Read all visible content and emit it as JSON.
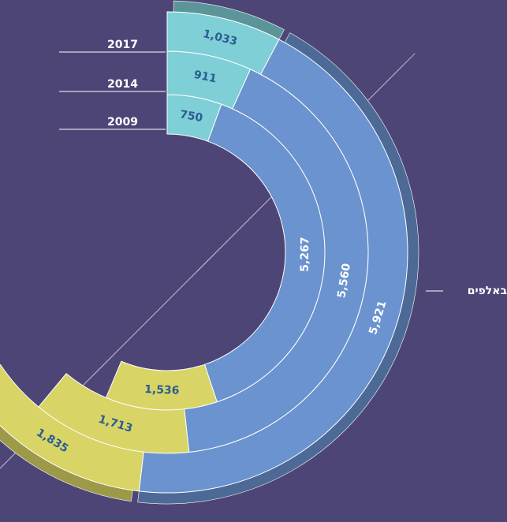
{
  "chart_data": {
    "type": "radial_stacked_bar",
    "unit_label": "באלפים",
    "categories": [
      "2009",
      "2014",
      "2017"
    ],
    "series": [
      {
        "color": "#7fcfd6",
        "values": [
          750,
          911,
          1033
        ],
        "value_labels": [
          "750",
          "911",
          "1,033"
        ]
      },
      {
        "color": "#6a93cf",
        "values": [
          5267,
          5560,
          5921
        ],
        "value_labels": [
          "5,267",
          "5,560",
          "5,921"
        ]
      },
      {
        "color": "#d8d466",
        "values": [
          1536,
          1713,
          1835
        ],
        "value_labels": [
          "1,536",
          "1,713",
          "1,835"
        ]
      }
    ]
  }
}
